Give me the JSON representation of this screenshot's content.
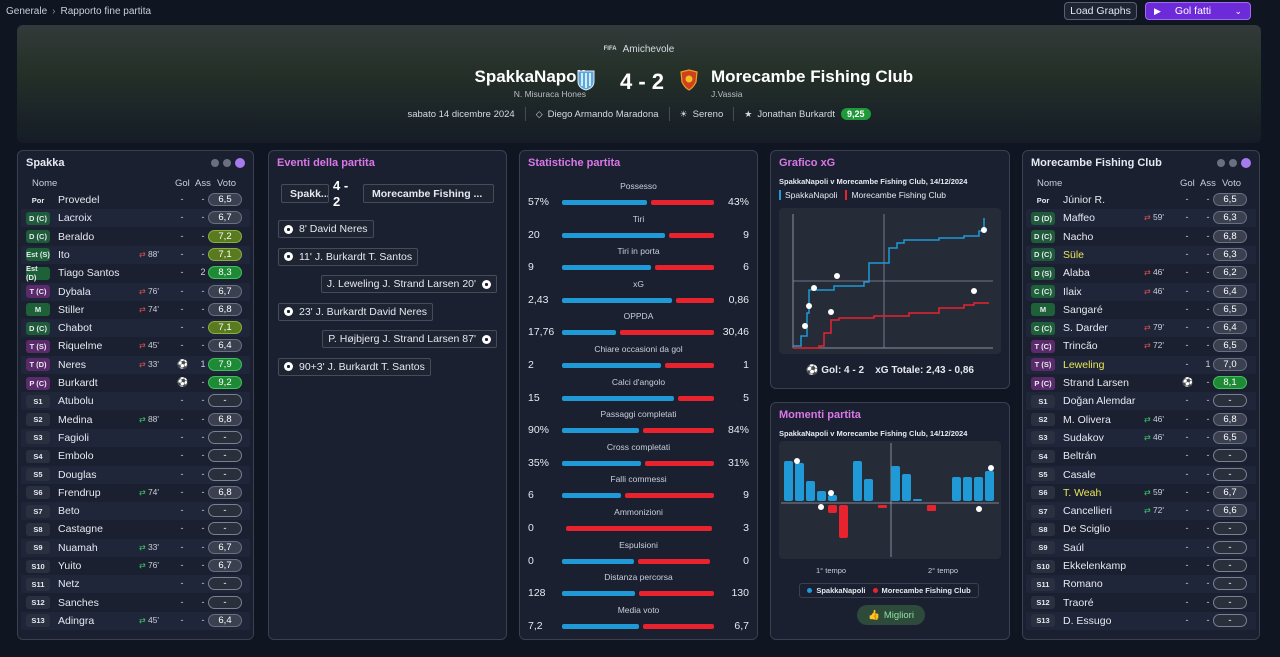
{
  "breadcrumb": {
    "root": "Generale",
    "current": "Rapporto fine partita"
  },
  "toolbar": {
    "load_graphs": "Load Graphs",
    "goals_button": "Gol fatti"
  },
  "match": {
    "competition_badge": "FIFA",
    "competition": "Amichevole",
    "home_team": "SpakkaNapoli",
    "home_coach": "N. Misuraca Hones",
    "away_team": "Morecambe Fishing Club",
    "away_coach": "J.Vassia",
    "score": "4 - 2",
    "date": "sabato 14 dicembre 2024",
    "stadium": "Diego Armando Maradona",
    "weather": "Sereno",
    "motm": "Jonathan Burkardt",
    "motm_rating": "9,25"
  },
  "home_panel": {
    "title": "Spakka",
    "headers": {
      "name": "Nome",
      "goals": "Gol",
      "assists": "Ass",
      "rating": "Voto"
    },
    "players": [
      {
        "pos": "Por",
        "name": "Provedel",
        "sub": "",
        "gol": "-",
        "ass": "-",
        "voto": "6,5",
        "cls": "gk",
        "pill": ""
      },
      {
        "pos": "D (C)",
        "name": "Lacroix",
        "sub": "",
        "gol": "-",
        "ass": "-",
        "voto": "6,7",
        "cls": "def",
        "pill": ""
      },
      {
        "pos": "D (C)",
        "name": "Beraldo",
        "sub": "",
        "gol": "-",
        "ass": "-",
        "voto": "7,2",
        "cls": "def",
        "pill": "g1"
      },
      {
        "pos": "Est (S)",
        "name": "Ito",
        "sub": "88'",
        "subdir": "out",
        "gol": "-",
        "ass": "-",
        "voto": "7,1",
        "cls": "mid",
        "pill": "g1"
      },
      {
        "pos": "Est (D)",
        "name": "Tiago Santos",
        "sub": "",
        "gol": "-",
        "ass": "2",
        "voto": "8,3",
        "cls": "mid",
        "pill": "g2"
      },
      {
        "pos": "T (C)",
        "name": "Dybala",
        "sub": "76'",
        "subdir": "out",
        "gol": "-",
        "ass": "-",
        "voto": "6,7",
        "cls": "att",
        "pill": ""
      },
      {
        "pos": "M",
        "name": "Stiller",
        "sub": "74'",
        "subdir": "out",
        "gol": "-",
        "ass": "-",
        "voto": "6,8",
        "cls": "mid",
        "pill": ""
      },
      {
        "pos": "D (C)",
        "name": "Chabot",
        "sub": "",
        "gol": "-",
        "ass": "-",
        "voto": "7,1",
        "cls": "def",
        "pill": "g1"
      },
      {
        "pos": "T (S)",
        "name": "Riquelme",
        "sub": "45'",
        "subdir": "out",
        "gol": "-",
        "ass": "-",
        "voto": "6,4",
        "cls": "att",
        "pill": ""
      },
      {
        "pos": "T (D)",
        "name": "Neres",
        "sub": "33'",
        "subdir": "out",
        "gol": "⚽",
        "ass": "1",
        "voto": "7,9",
        "cls": "att",
        "pill": "g2"
      },
      {
        "pos": "P (C)",
        "name": "Burkardt",
        "sub": "",
        "gol": "⚽",
        "ass": "-",
        "voto": "9,2",
        "cls": "att",
        "pill": "g2"
      },
      {
        "pos": "S1",
        "name": "Atubolu",
        "sub": "",
        "gol": "-",
        "ass": "-",
        "voto": "-",
        "cls": "sub",
        "pill": "dash"
      },
      {
        "pos": "S2",
        "name": "Medina",
        "sub": "88'",
        "subdir": "in",
        "gol": "-",
        "ass": "-",
        "voto": "6,8",
        "cls": "sub",
        "pill": ""
      },
      {
        "pos": "S3",
        "name": "Fagioli",
        "sub": "",
        "gol": "-",
        "ass": "-",
        "voto": "-",
        "cls": "sub",
        "pill": "dash"
      },
      {
        "pos": "S4",
        "name": "Embolo",
        "sub": "",
        "gol": "-",
        "ass": "-",
        "voto": "-",
        "cls": "sub",
        "pill": "dash"
      },
      {
        "pos": "S5",
        "name": "Douglas",
        "sub": "",
        "gol": "-",
        "ass": "-",
        "voto": "-",
        "cls": "sub",
        "pill": "dash"
      },
      {
        "pos": "S6",
        "name": "Frendrup",
        "sub": "74'",
        "subdir": "in",
        "gol": "-",
        "ass": "-",
        "voto": "6,8",
        "cls": "sub",
        "pill": ""
      },
      {
        "pos": "S7",
        "name": "Beto",
        "sub": "",
        "gol": "-",
        "ass": "-",
        "voto": "-",
        "cls": "sub",
        "pill": "dash"
      },
      {
        "pos": "S8",
        "name": "Castagne",
        "sub": "",
        "gol": "-",
        "ass": "-",
        "voto": "-",
        "cls": "sub",
        "pill": "dash"
      },
      {
        "pos": "S9",
        "name": "Nuamah",
        "sub": "33'",
        "subdir": "in",
        "gol": "-",
        "ass": "-",
        "voto": "6,7",
        "cls": "sub",
        "pill": ""
      },
      {
        "pos": "S10",
        "name": "Yuito",
        "sub": "76'",
        "subdir": "in",
        "gol": "-",
        "ass": "-",
        "voto": "6,7",
        "cls": "sub",
        "pill": ""
      },
      {
        "pos": "S11",
        "name": "Netz",
        "sub": "",
        "gol": "-",
        "ass": "-",
        "voto": "-",
        "cls": "sub",
        "pill": "dash"
      },
      {
        "pos": "S12",
        "name": "Sanches",
        "sub": "",
        "gol": "-",
        "ass": "-",
        "voto": "-",
        "cls": "sub",
        "pill": "dash"
      },
      {
        "pos": "S13",
        "name": "Adingra",
        "sub": "45'",
        "subdir": "in",
        "gol": "-",
        "ass": "-",
        "voto": "6,4",
        "cls": "sub",
        "pill": ""
      }
    ]
  },
  "events_panel": {
    "title": "Eventi della partita",
    "home_short": "Spakk...",
    "score": "4 - 2",
    "away_short": "Morecambe Fishing ...",
    "events": [
      {
        "side": "home",
        "text": "8' David Neres"
      },
      {
        "side": "home",
        "text": "11' J. Burkardt T. Santos"
      },
      {
        "side": "away",
        "text": "J. Leweling J. Strand Larsen 20'"
      },
      {
        "side": "home",
        "text": "23' J. Burkardt David Neres"
      },
      {
        "side": "away",
        "text": "P. Højbjerg J. Strand Larsen 87'"
      },
      {
        "side": "home",
        "text": "90+3' J. Burkardt T. Santos"
      }
    ]
  },
  "stats_panel": {
    "title": "Statistiche partita",
    "stats": [
      {
        "label": "Possesso",
        "home": "57%",
        "away": "43%",
        "h": 57,
        "a": 43
      },
      {
        "label": "Tiri",
        "home": "20",
        "away": "9",
        "h": 20,
        "a": 9
      },
      {
        "label": "Tiri in porta",
        "home": "9",
        "away": "6",
        "h": 9,
        "a": 6
      },
      {
        "label": "xG",
        "home": "2,43",
        "away": "0,86",
        "h": 2.43,
        "a": 0.86
      },
      {
        "label": "OPPDA",
        "home": "17,76",
        "away": "30,46",
        "h": 17.76,
        "a": 30.46
      },
      {
        "label": "Chiare occasioni da gol",
        "home": "2",
        "away": "1",
        "h": 2,
        "a": 1
      },
      {
        "label": "Calci d'angolo",
        "home": "15",
        "away": "5",
        "h": 15,
        "a": 5
      },
      {
        "label": "Passaggi completati",
        "home": "90%",
        "away": "84%",
        "h": 90,
        "a": 84
      },
      {
        "label": "Cross completati",
        "home": "35%",
        "away": "31%",
        "h": 35,
        "a": 31
      },
      {
        "label": "Falli commessi",
        "home": "6",
        "away": "9",
        "h": 6,
        "a": 9
      },
      {
        "label": "Ammonizioni",
        "home": "0",
        "away": "3",
        "h": 0,
        "a": 3
      },
      {
        "label": "Espulsioni",
        "home": "0",
        "away": "0",
        "h": 0,
        "a": 0
      },
      {
        "label": "Distanza percorsa",
        "home": "128",
        "away": "130",
        "h": 128,
        "a": 130
      },
      {
        "label": "Media voto",
        "home": "7,2",
        "away": "6,7",
        "h": 7.2,
        "a": 6.7
      }
    ]
  },
  "xg_panel": {
    "title": "Grafico xG",
    "subtitle": "SpakkaNapoli v Morecambe Fishing Club, 14/12/2024",
    "legend_home": "SpakkaNapoli",
    "legend_away": "Morecambe Fishing Club",
    "footer_goals": "Gol: 4 - 2",
    "footer_xg": "xG Totale: 2,43 - 0,86",
    "home_color": "#1f9ad6",
    "away_color": "#e8232e"
  },
  "moments_panel": {
    "title": "Momenti partita",
    "subtitle": "SpakkaNapoli v Morecambe Fishing Club, 14/12/2024",
    "half1": "1° tempo",
    "half2": "2° tempo",
    "legend_home": "SpakkaNapoli",
    "legend_away": "Morecambe Fishing Club",
    "best_button": "Migliori"
  },
  "away_panel": {
    "title": "Morecambe Fishing Club",
    "headers": {
      "name": "Nome",
      "goals": "Gol",
      "assists": "Ass",
      "rating": "Voto"
    },
    "players": [
      {
        "pos": "Por",
        "name": "Júnior R.",
        "sub": "",
        "gol": "-",
        "ass": "-",
        "voto": "6,5",
        "cls": "gk",
        "pill": ""
      },
      {
        "pos": "D (D)",
        "name": "Maffeo",
        "sub": "59'",
        "subdir": "out",
        "gol": "-",
        "ass": "-",
        "voto": "6,3",
        "cls": "def",
        "pill": ""
      },
      {
        "pos": "D (C)",
        "name": "Nacho",
        "sub": "",
        "gol": "-",
        "ass": "-",
        "voto": "6,8",
        "cls": "def",
        "pill": ""
      },
      {
        "pos": "D (C)",
        "name": "Süle",
        "sub": "",
        "gol": "-",
        "ass": "-",
        "voto": "6,3",
        "cls": "def",
        "pill": "",
        "yel": true
      },
      {
        "pos": "D (S)",
        "name": "Alaba",
        "sub": "46'",
        "subdir": "out",
        "gol": "-",
        "ass": "-",
        "voto": "6,2",
        "cls": "def",
        "pill": ""
      },
      {
        "pos": "C (C)",
        "name": "Ilaix",
        "sub": "46'",
        "subdir": "out",
        "gol": "-",
        "ass": "-",
        "voto": "6,4",
        "cls": "mid",
        "pill": ""
      },
      {
        "pos": "M",
        "name": "Sangaré",
        "sub": "",
        "gol": "-",
        "ass": "-",
        "voto": "6,5",
        "cls": "mid",
        "pill": ""
      },
      {
        "pos": "C (C)",
        "name": "S. Darder",
        "sub": "79'",
        "subdir": "out",
        "gol": "-",
        "ass": "-",
        "voto": "6,4",
        "cls": "mid",
        "pill": ""
      },
      {
        "pos": "T (C)",
        "name": "Trincão",
        "sub": "72'",
        "subdir": "out",
        "gol": "-",
        "ass": "-",
        "voto": "6,5",
        "cls": "att",
        "pill": ""
      },
      {
        "pos": "T (S)",
        "name": "Leweling",
        "sub": "",
        "gol": "-",
        "ass": "1",
        "voto": "7,0",
        "cls": "att",
        "pill": "",
        "yel": true
      },
      {
        "pos": "P (C)",
        "name": "Strand Larsen",
        "sub": "",
        "gol": "⚽",
        "ass": "-",
        "voto": "8,1",
        "cls": "att",
        "pill": "g2"
      },
      {
        "pos": "S1",
        "name": "Doğan Alemdar",
        "sub": "",
        "gol": "-",
        "ass": "-",
        "voto": "-",
        "cls": "sub",
        "pill": "dash"
      },
      {
        "pos": "S2",
        "name": "M. Olivera",
        "sub": "46'",
        "subdir": "in",
        "gol": "-",
        "ass": "-",
        "voto": "6,8",
        "cls": "sub",
        "pill": ""
      },
      {
        "pos": "S3",
        "name": "Sudakov",
        "sub": "46'",
        "subdir": "in",
        "gol": "-",
        "ass": "-",
        "voto": "6,5",
        "cls": "sub",
        "pill": ""
      },
      {
        "pos": "S4",
        "name": "Beltrán",
        "sub": "",
        "gol": "-",
        "ass": "-",
        "voto": "-",
        "cls": "sub",
        "pill": "dash"
      },
      {
        "pos": "S5",
        "name": "Casale",
        "sub": "",
        "gol": "-",
        "ass": "-",
        "voto": "-",
        "cls": "sub",
        "pill": "dash"
      },
      {
        "pos": "S6",
        "name": "T. Weah",
        "sub": "59'",
        "subdir": "in",
        "gol": "-",
        "ass": "-",
        "voto": "6,7",
        "cls": "sub",
        "pill": "",
        "yel": true
      },
      {
        "pos": "S7",
        "name": "Cancellieri",
        "sub": "72'",
        "subdir": "in",
        "gol": "-",
        "ass": "-",
        "voto": "6,6",
        "cls": "sub",
        "pill": ""
      },
      {
        "pos": "S8",
        "name": "De Sciglio",
        "sub": "",
        "gol": "-",
        "ass": "-",
        "voto": "-",
        "cls": "sub",
        "pill": "dash"
      },
      {
        "pos": "S9",
        "name": "Saúl",
        "sub": "",
        "gol": "-",
        "ass": "-",
        "voto": "-",
        "cls": "sub",
        "pill": "dash"
      },
      {
        "pos": "S10",
        "name": "Ekkelenkamp",
        "sub": "",
        "gol": "-",
        "ass": "-",
        "voto": "-",
        "cls": "sub",
        "pill": "dash"
      },
      {
        "pos": "S11",
        "name": "Romano",
        "sub": "",
        "gol": "-",
        "ass": "-",
        "voto": "-",
        "cls": "sub",
        "pill": "dash"
      },
      {
        "pos": "S12",
        "name": "Traoré",
        "sub": "",
        "gol": "-",
        "ass": "-",
        "voto": "-",
        "cls": "sub",
        "pill": "dash"
      },
      {
        "pos": "S13",
        "name": "D. Essugo",
        "sub": "",
        "gol": "-",
        "ass": "-",
        "voto": "-",
        "cls": "sub",
        "pill": "dash"
      }
    ]
  }
}
